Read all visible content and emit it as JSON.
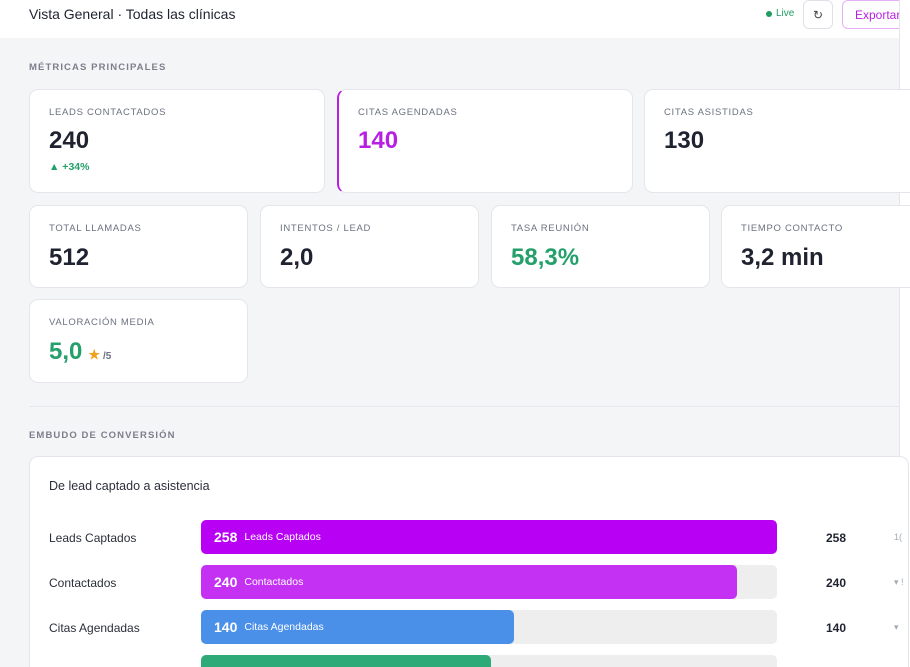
{
  "header": {
    "title": "Vista General · Todas las clínicas",
    "live_label": "Live",
    "refresh_icon": "↻",
    "export_label": "Exportar"
  },
  "metrics": {
    "section_title": "MÉTRICAS PRINCIPALES",
    "leads_contactados": {
      "label": "LEADS CONTACTADOS",
      "value": "240",
      "delta": "▲ +34%"
    },
    "citas_agendadas": {
      "label": "CITAS AGENDADAS",
      "value": "140"
    },
    "citas_asistidas": {
      "label": "CITAS ASISTIDAS",
      "value": "130"
    },
    "total_llamadas": {
      "label": "TOTAL LLAMADAS",
      "value": "512"
    },
    "intentos_lead": {
      "label": "INTENTOS / LEAD",
      "value": "2,0"
    },
    "tasa_reunion": {
      "label": "TASA REUNIÓN",
      "value": "58,3%"
    },
    "tiempo_contacto": {
      "label": "TIEMPO CONTACTO",
      "value": "3,2 min"
    },
    "valoracion_media": {
      "label": "VALORACIÓN MEDIA",
      "value": "5,0",
      "star": "★",
      "out_of": "/5"
    }
  },
  "funnel": {
    "section_title": "EMBUDO DE CONVERSIÓN",
    "subtitle": "De lead captado a asistencia",
    "max": 258,
    "rows": [
      {
        "label": "Leads Captados",
        "value": 258,
        "value_text": "258",
        "bar_label": "Leads Captados",
        "count": "258",
        "extra": "1(",
        "color": "#b800f5"
      },
      {
        "label": "Contactados",
        "value": 240,
        "value_text": "240",
        "bar_label": "Contactados",
        "count": "240",
        "extra": "▾ !",
        "color": "#c431f3"
      },
      {
        "label": "Citas Agendadas",
        "value": 140,
        "value_text": "140",
        "bar_label": "Citas Agendadas",
        "count": "140",
        "extra": "▾",
        "color": "#4a8fe8"
      },
      {
        "label": "",
        "value": 130,
        "value_text": "",
        "bar_label": "",
        "count": "",
        "extra": "",
        "color": "#2eaa78"
      }
    ]
  }
}
